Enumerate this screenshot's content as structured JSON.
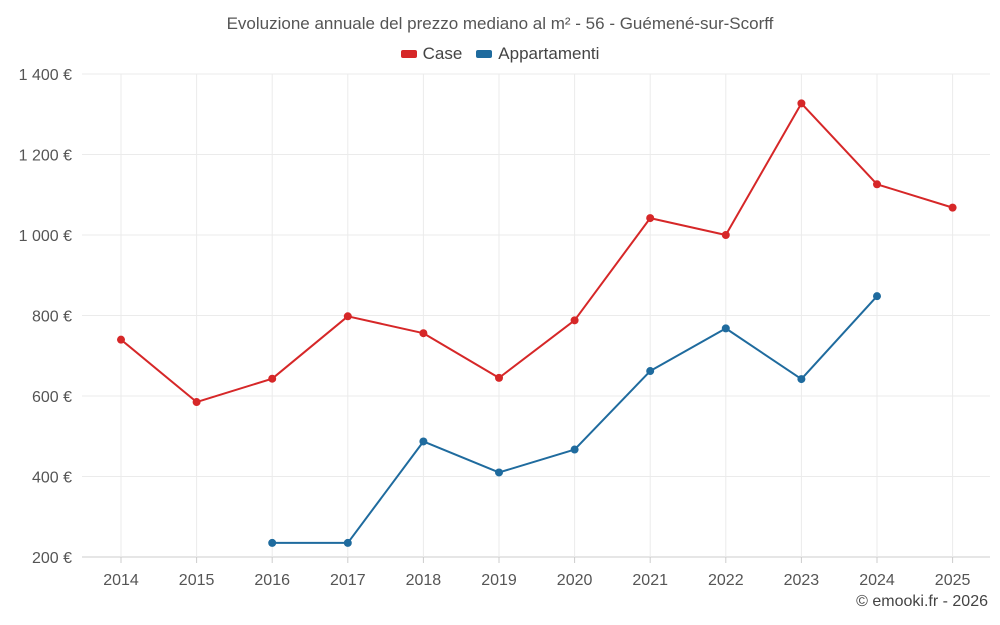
{
  "chart_data": {
    "type": "line",
    "title": "Evoluzione annuale del prezzo mediano al m² - 56 - Guémené-sur-Scorff",
    "categories": [
      "2014",
      "2015",
      "2016",
      "2017",
      "2018",
      "2019",
      "2020",
      "2021",
      "2022",
      "2023",
      "2024",
      "2025"
    ],
    "y_tick_labels": [
      "200 €",
      "400 €",
      "600 €",
      "800 €",
      "1 000 €",
      "1 200 €",
      "1 400 €"
    ],
    "y_ticks": [
      200,
      400,
      600,
      800,
      1000,
      1200,
      1400
    ],
    "ylim": [
      200,
      1400
    ],
    "grid": true,
    "legend_position": "top-center",
    "series": [
      {
        "name": "Case",
        "color": "#d62728",
        "values": [
          740,
          585,
          643,
          798,
          756,
          645,
          788,
          1042,
          1000,
          1327,
          1126,
          1068
        ]
      },
      {
        "name": "Appartamenti",
        "color": "#1f6b9e",
        "values": [
          null,
          null,
          235,
          235,
          487,
          410,
          467,
          662,
          768,
          642,
          848,
          null
        ]
      }
    ]
  },
  "footer": {
    "credit": "© emooki.fr - 2026"
  }
}
